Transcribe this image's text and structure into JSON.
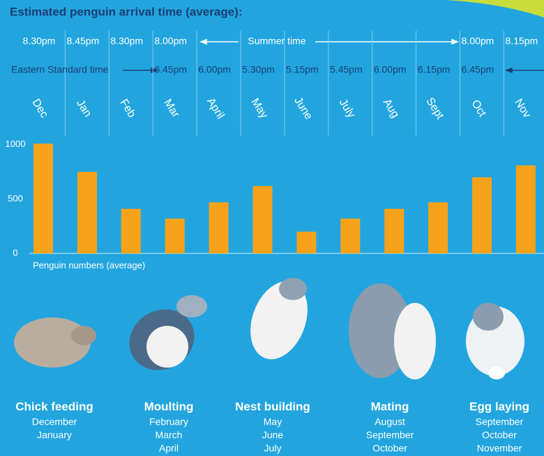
{
  "header": {
    "title": "Estimated penguin arrival time (average):"
  },
  "arrival_times": {
    "summer": {
      "label": "Summer time",
      "times": [
        "8.30pm",
        "8.45pm",
        "8.30pm",
        "8.00pm",
        null,
        null,
        null,
        null,
        null,
        null,
        "8.00pm",
        "8.15pm"
      ]
    },
    "standard": {
      "label": "Eastern Standard time",
      "times": [
        null,
        null,
        null,
        "6.45pm",
        "6.00pm",
        "5.30pm",
        "5.15pm",
        "5.45pm",
        "6.00pm",
        "6.15pm",
        "6.45pm",
        null
      ]
    }
  },
  "chart_data": {
    "type": "bar",
    "categories": [
      "Dec",
      "Jan",
      "Feb",
      "Mar",
      "April",
      "May",
      "June",
      "July",
      "Aug",
      "Sept",
      "Oct",
      "Nov"
    ],
    "values": [
      1010,
      750,
      410,
      320,
      470,
      620,
      200,
      320,
      410,
      470,
      700,
      810
    ],
    "color": "#f7a21b",
    "ylim": [
      0,
      1050
    ],
    "yticks": [
      0,
      500,
      1000
    ],
    "y_label": "Penguin numbers (average)"
  },
  "stages": [
    {
      "title": "Chick feeding",
      "months": [
        "December",
        "January"
      ]
    },
    {
      "title": "Moulting",
      "months": [
        "February",
        "March",
        "April"
      ]
    },
    {
      "title": "Nest building",
      "months": [
        "May",
        "June",
        "July"
      ]
    },
    {
      "title": "Mating",
      "months": [
        "August",
        "September",
        "October"
      ]
    },
    {
      "title": "Egg laying",
      "months": [
        "September",
        "October",
        "November"
      ]
    }
  ]
}
